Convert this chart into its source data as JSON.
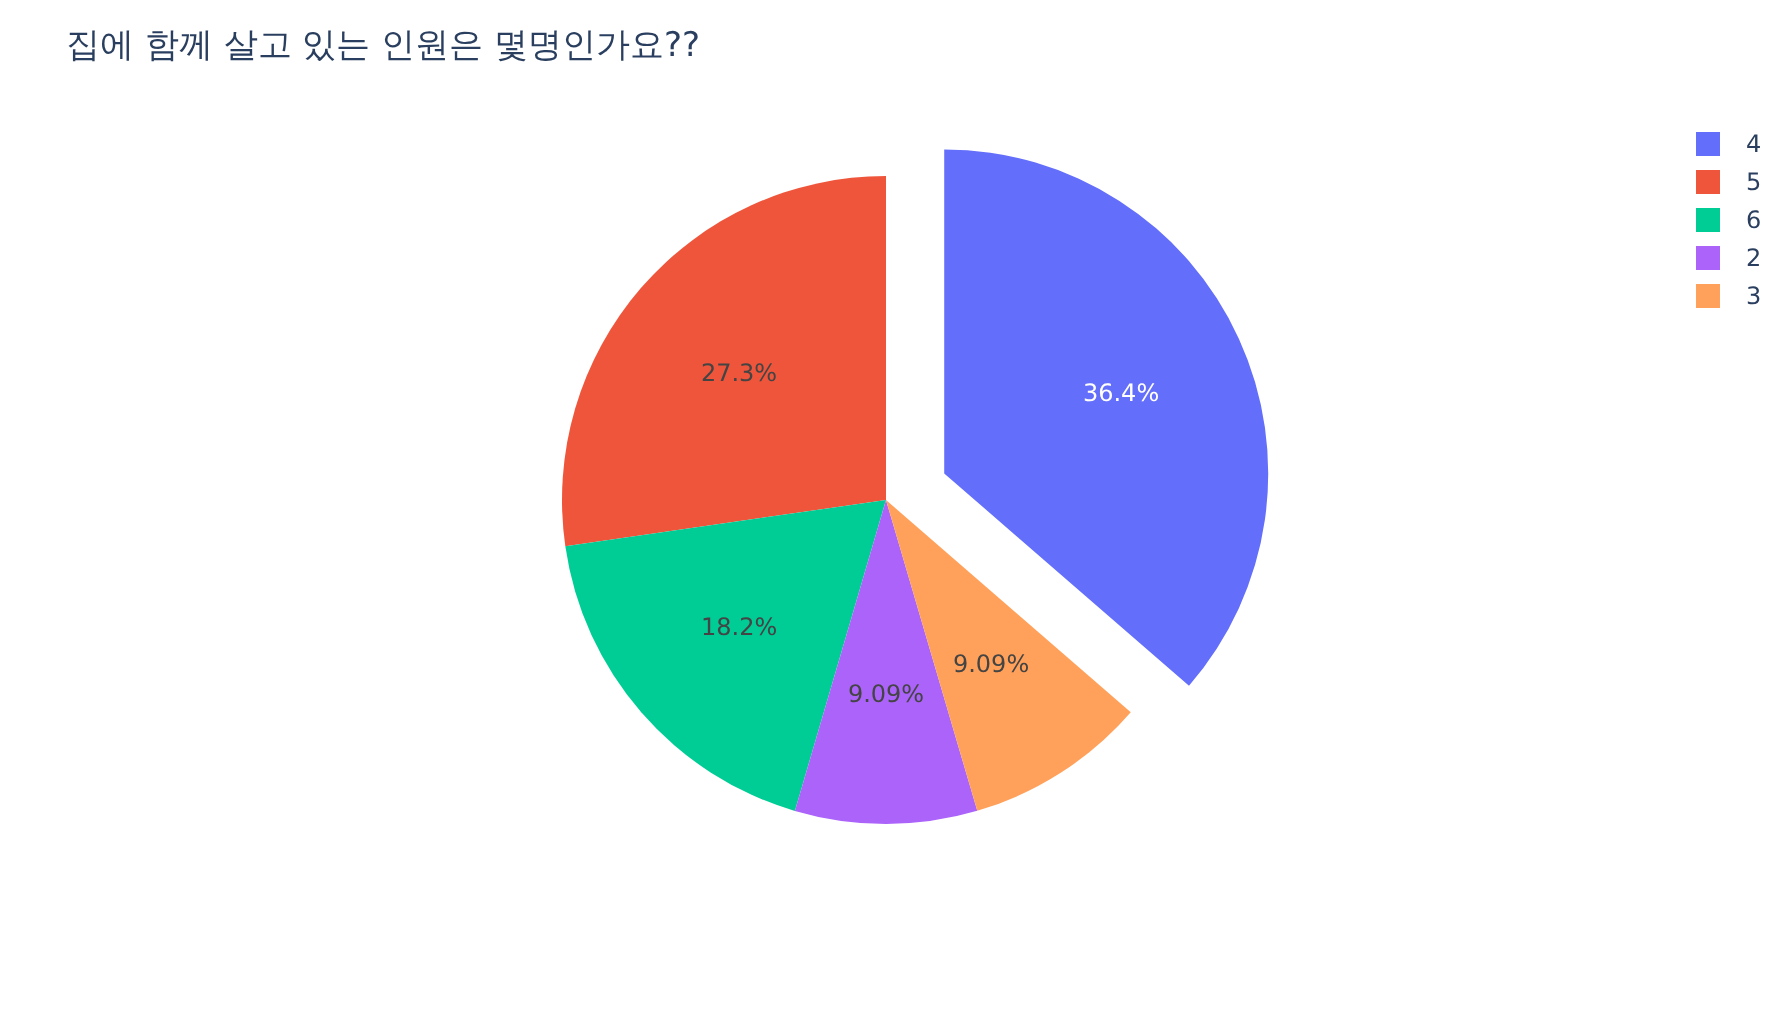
{
  "chart_data": {
    "type": "pie",
    "title": "집에 함께 살고 있는 인원은 몇명인가요??",
    "categories": [
      "4",
      "5",
      "6",
      "2",
      "3"
    ],
    "values": [
      36.4,
      27.3,
      18.2,
      9.09,
      9.09
    ],
    "colors": [
      "#636efa",
      "#ef553b",
      "#00cc96",
      "#ab63fa",
      "#ffa15a"
    ],
    "value_labels": [
      "36.4%",
      "27.3%",
      "18.2%",
      "9.09%",
      "9.09%"
    ],
    "legend": "top right"
  }
}
